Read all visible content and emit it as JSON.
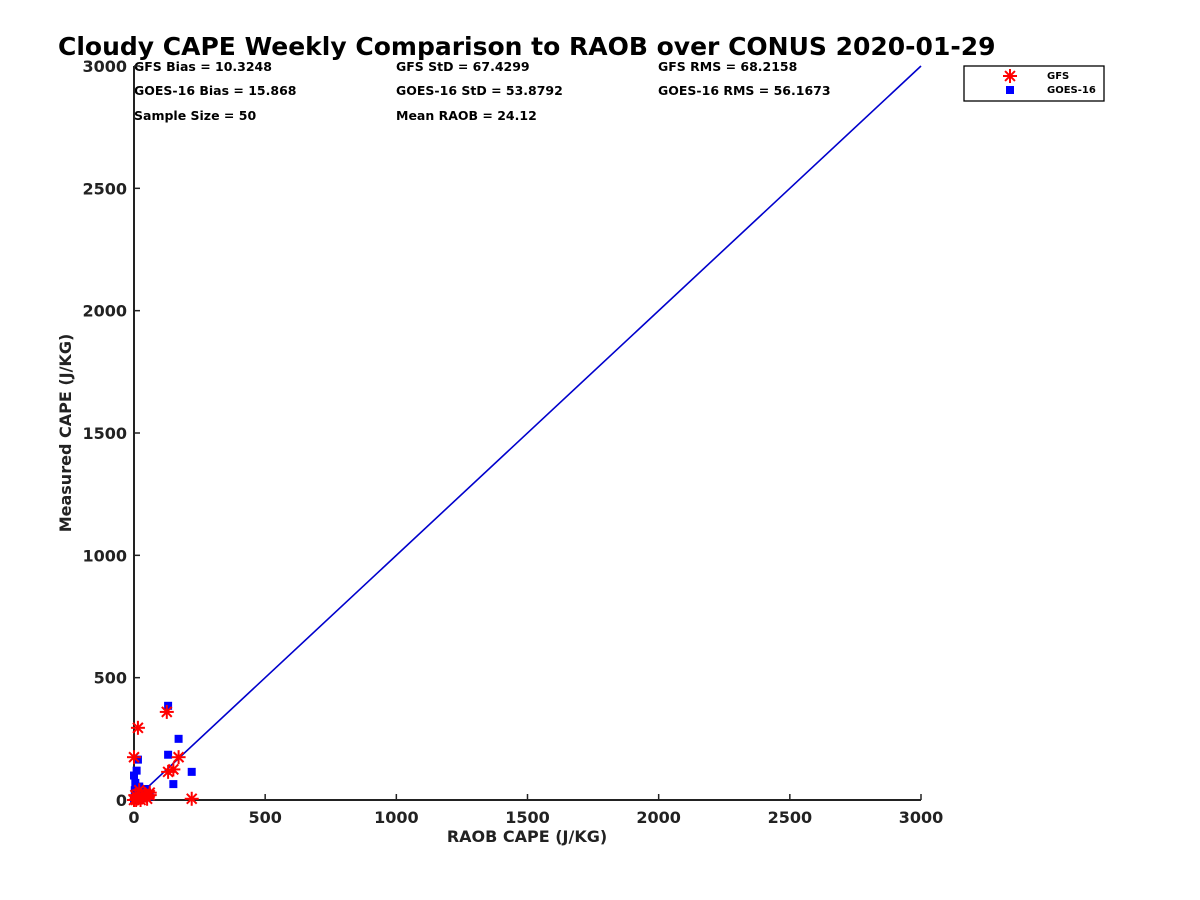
{
  "chart_data": {
    "type": "scatter",
    "title": "Cloudy CAPE Weekly Comparison to RAOB over CONUS 2020-01-29",
    "xlabel": "RAOB CAPE (J/KG)",
    "ylabel": "Measured CAPE (J/KG)",
    "xlim": [
      0,
      3000
    ],
    "ylim": [
      0,
      3000
    ],
    "xticks": [
      0,
      500,
      1000,
      1500,
      2000,
      2500,
      3000
    ],
    "yticks": [
      0,
      500,
      1000,
      1500,
      2000,
      2500,
      3000
    ],
    "grid": false,
    "legend_position": "top-right, outside plot area",
    "stats": [
      "GFS Bias = 10.3248",
      "GFS StD = 67.4299",
      "GFS RMS = 68.2158",
      "GOES-16 Bias = 15.868",
      "GOES-16 StD = 53.8792",
      "GOES-16 RMS = 56.1673",
      "Sample Size = 50",
      "Mean RAOB = 24.12"
    ],
    "one_to_one_line": {
      "x": [
        0,
        3000
      ],
      "y": [
        0,
        3000
      ],
      "color": "#0000cc"
    },
    "series": [
      {
        "name": "GFS",
        "marker": "asterisk",
        "color": "#ff0000",
        "points": [
          [
            0,
            175
          ],
          [
            15,
            295
          ],
          [
            5,
            20
          ],
          [
            10,
            5
          ],
          [
            20,
            40
          ],
          [
            30,
            10
          ],
          [
            40,
            25
          ],
          [
            50,
            5
          ],
          [
            60,
            20
          ],
          [
            0,
            0
          ],
          [
            8,
            0
          ],
          [
            25,
            0
          ],
          [
            125,
            360
          ],
          [
            130,
            115
          ],
          [
            150,
            125
          ],
          [
            170,
            175
          ],
          [
            220,
            5
          ],
          [
            60,
            30
          ]
        ]
      },
      {
        "name": "GOES-16",
        "marker": "square",
        "color": "#0000ff",
        "points": [
          [
            0,
            100
          ],
          [
            10,
            120
          ],
          [
            15,
            165
          ],
          [
            5,
            70
          ],
          [
            3,
            40
          ],
          [
            10,
            50
          ],
          [
            20,
            20
          ],
          [
            30,
            35
          ],
          [
            40,
            10
          ],
          [
            50,
            30
          ],
          [
            60,
            15
          ],
          [
            0,
            0
          ],
          [
            25,
            5
          ],
          [
            130,
            385
          ],
          [
            130,
            185
          ],
          [
            170,
            250
          ],
          [
            150,
            65
          ],
          [
            220,
            115
          ],
          [
            20,
            55
          ],
          [
            45,
            45
          ]
        ]
      }
    ]
  }
}
